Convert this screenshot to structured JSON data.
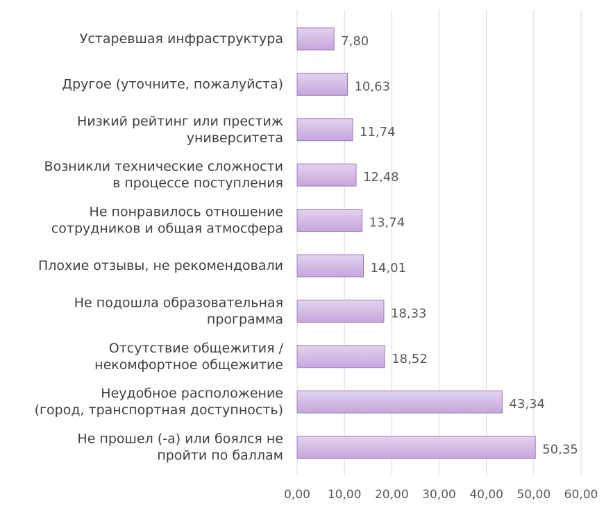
{
  "chart_data": {
    "type": "bar",
    "orientation": "horizontal",
    "categories": [
      "Устаревшая инфраструктура",
      "Другое (уточните, пожалуйста)",
      "Низкий рейтинг или престиж университета",
      "Возникли технические сложности в процессе поступления",
      "Не понравилось отношение сотрудников и общая атмосфера",
      "Плохие отзывы, не рекомендовали",
      "Не подошла образовательная программа",
      "Отсутствие общежития / некомфортное общежитие",
      "Неудобное расположение (город, транспортная доступность)",
      "Не прошел (-а) или боялся не пройти по баллам"
    ],
    "category_lines": [
      [
        "Устаревшая инфраструктура"
      ],
      [
        "Другое (уточните, пожалуйста)"
      ],
      [
        "Низкий рейтинг или престиж",
        "университета"
      ],
      [
        "Возникли технические сложности",
        "в процессе поступления"
      ],
      [
        "Не понравилось отношение",
        "сотрудников и общая атмосфера"
      ],
      [
        "Плохие отзывы, не рекомендовали"
      ],
      [
        "Не подошла образовательная",
        "программа"
      ],
      [
        "Отсутствие общежития /",
        "некомфортное общежитие"
      ],
      [
        "Неудобное расположение",
        "(город, транспортная доступность)"
      ],
      [
        "Не прошел (-а) или боялся не",
        "пройти по баллам"
      ]
    ],
    "values": [
      7.8,
      10.63,
      11.74,
      12.48,
      13.74,
      14.01,
      18.33,
      18.52,
      43.34,
      50.35
    ],
    "value_labels": [
      "7,80",
      "10,63",
      "11,74",
      "12,48",
      "13,74",
      "14,01",
      "18,33",
      "18,52",
      "43,34",
      "50,35"
    ],
    "x_ticks": [
      0,
      10,
      20,
      30,
      40,
      50,
      60
    ],
    "x_tick_labels": [
      "0,00",
      "10,00",
      "20,00",
      "30,00",
      "40,00",
      "50,00",
      "60,00"
    ],
    "xlim": [
      0,
      60
    ],
    "grid": true,
    "legend": "none",
    "colors": {
      "bar_fill_top": "#e3d3ef",
      "bar_fill_bottom": "#c6a6dd",
      "bar_stroke": "#9b7cb6",
      "grid": "#d9d9d9",
      "label_text": "#404040",
      "value_text": "#595959"
    }
  }
}
